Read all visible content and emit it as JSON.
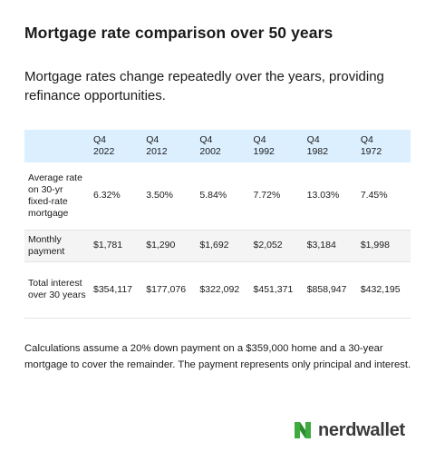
{
  "title": "Mortgage rate comparison over 50 years",
  "subtitle": "Mortgage rates change repeatedly over the years, providing refinance opportunities.",
  "table": {
    "headers": [
      "Q4\n2022",
      "Q4\n2012",
      "Q4\n2002",
      "Q4\n1992",
      "Q4\n1982",
      "Q4\n1972"
    ],
    "rows": [
      {
        "label": "Average rate on 30-yr fixed-rate mortgage",
        "values": [
          "6.32%",
          "3.50%",
          "5.84%",
          "7.72%",
          "13.03%",
          "7.45%"
        ]
      },
      {
        "label": "Monthly payment",
        "values": [
          "$1,781",
          "$1,290",
          "$1,692",
          "$2,052",
          "$3,184",
          "$1,998"
        ]
      },
      {
        "label": "Total interest over 30 years",
        "values": [
          "$354,117",
          "$177,076",
          "$322,092",
          "$451,371",
          "$858,947",
          "$432,195"
        ]
      }
    ]
  },
  "note": "Calculations assume a 20% down payment on a $359,000 home and a 30-year mortgage to cover the remainder. The payment represents only principal and interest.",
  "logo": {
    "text": "nerdwallet",
    "color": "#3dab3d",
    "icon": "nerdwallet-logo-icon"
  }
}
